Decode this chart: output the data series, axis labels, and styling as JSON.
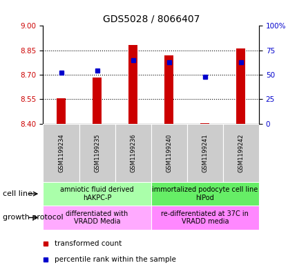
{
  "title": "GDS5028 / 8066407",
  "samples": [
    "GSM1199234",
    "GSM1199235",
    "GSM1199236",
    "GSM1199240",
    "GSM1199241",
    "GSM1199242"
  ],
  "transformed_count": [
    8.555,
    8.685,
    8.882,
    8.82,
    8.405,
    8.862
  ],
  "percentile_rank": [
    52,
    54,
    65,
    63,
    48,
    63
  ],
  "ylim_left": [
    8.4,
    9.0
  ],
  "ylim_right": [
    0,
    100
  ],
  "yticks_left": [
    8.4,
    8.55,
    8.7,
    8.85,
    9.0
  ],
  "yticks_right": [
    0,
    25,
    50,
    75,
    100
  ],
  "bar_color": "#cc0000",
  "dot_color": "#0000cc",
  "bar_bottom": 8.4,
  "bar_width": 0.25,
  "cell_line_groups": [
    {
      "label": "amniotic fluid derived\nhAKPC-P",
      "start": 0,
      "end": 3,
      "color": "#aaffaa"
    },
    {
      "label": "immortalized podocyte cell line\nhIPod",
      "start": 3,
      "end": 6,
      "color": "#66ee66"
    }
  ],
  "growth_protocol_groups": [
    {
      "label": "differentiated with\nVRADD Media",
      "start": 0,
      "end": 3,
      "color": "#ffaaff"
    },
    {
      "label": "re-differentiated at 37C in\nVRADD media",
      "start": 3,
      "end": 6,
      "color": "#ff88ff"
    }
  ],
  "cell_line_label": "cell line",
  "growth_protocol_label": "growth protocol",
  "legend_items": [
    {
      "label": "transformed count",
      "color": "#cc0000"
    },
    {
      "label": "percentile rank within the sample",
      "color": "#0000cc"
    }
  ],
  "left_tick_color": "#cc0000",
  "right_tick_color": "#0000cc",
  "grid_color": "#000000",
  "title_fontsize": 10,
  "tick_fontsize": 7.5,
  "sample_fontsize": 6,
  "group_fontsize": 7,
  "legend_fontsize": 7.5,
  "label_fontsize": 8
}
